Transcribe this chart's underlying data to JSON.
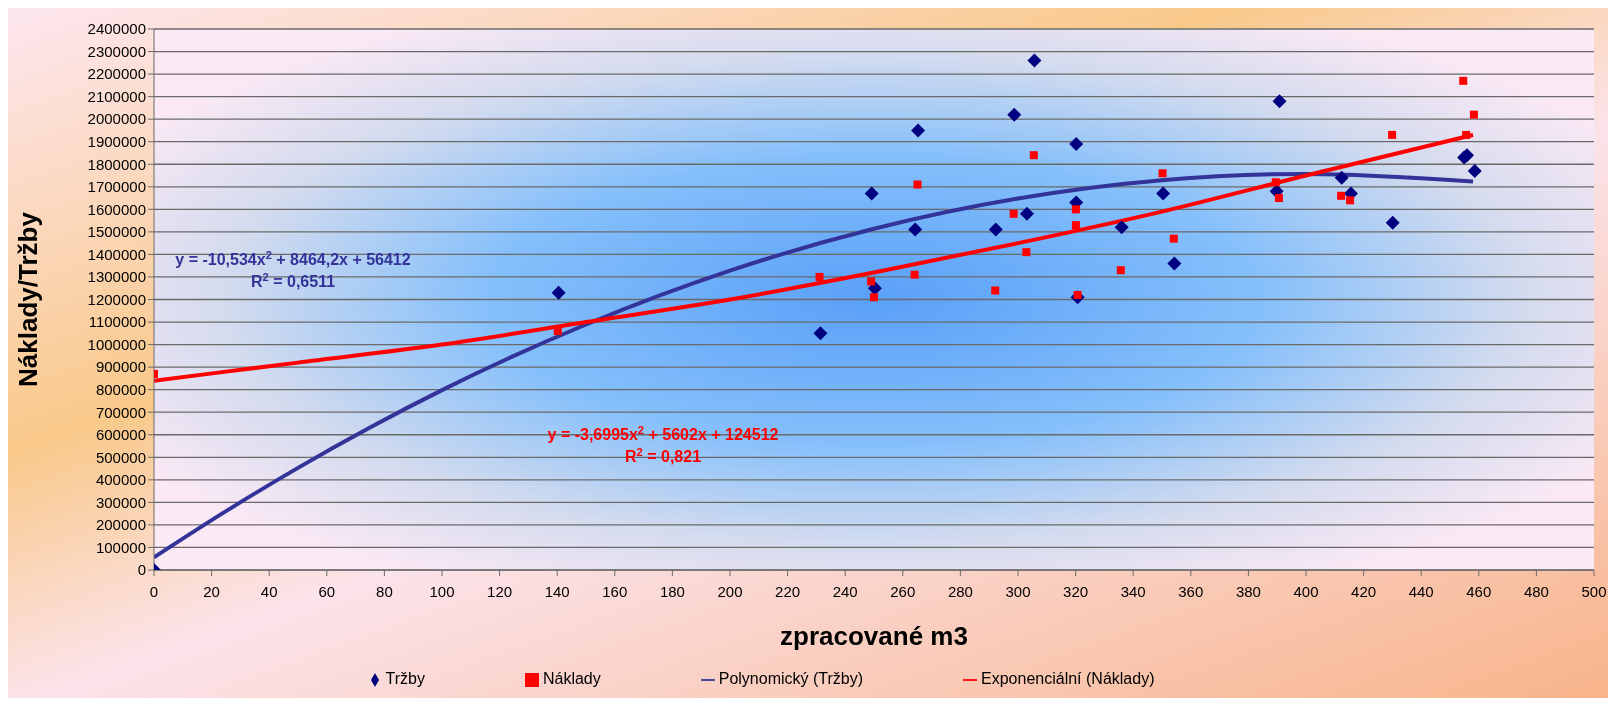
{
  "chart_data": {
    "type": "scatter",
    "xlabel": "zpracované m3",
    "ylabel": "Náklady/Tržby",
    "xlim": [
      0,
      500
    ],
    "xticks": [
      0,
      20,
      40,
      60,
      80,
      100,
      120,
      140,
      160,
      180,
      200,
      220,
      240,
      260,
      280,
      300,
      320,
      340,
      360,
      380,
      400,
      420,
      440,
      460,
      480,
      500
    ],
    "ylim": [
      0,
      2400000
    ],
    "yticks": [
      0,
      100000,
      200000,
      300000,
      400000,
      500000,
      600000,
      700000,
      800000,
      900000,
      1000000,
      1100000,
      1200000,
      1300000,
      1400000,
      1500000,
      1600000,
      1700000,
      1800000,
      1900000,
      2000000,
      2100000,
      2200000,
      2300000,
      2400000
    ],
    "grid": "y",
    "legend": "bottom",
    "series": [
      {
        "name": "Tržby",
        "marker": "diamond",
        "color": "#000080",
        "x": [
          0,
          140.5,
          231.4,
          249.2,
          250.3,
          264.3,
          265.3,
          292.3,
          298.7,
          303.1,
          305.7,
          320.2,
          320.2,
          320.7,
          336,
          350.4,
          354.3,
          389.8,
          390.8,
          412.4,
          415.6,
          430.1,
          454.9,
          455.9,
          458.6
        ],
        "values": [
          0,
          1230000,
          1050000,
          1670000,
          1250000,
          1510000,
          1950000,
          1510000,
          2020000,
          1580000,
          2260000,
          1890000,
          1630000,
          1210000,
          1520000,
          1670000,
          1360000,
          1680000,
          2080000,
          1740000,
          1670000,
          1540000,
          1830000,
          1840000,
          1770000
        ]
      },
      {
        "name": "Náklady",
        "marker": "square",
        "color": "#ff0000",
        "x": [
          0,
          140.2,
          231.1,
          249,
          250,
          264.1,
          265.1,
          292.1,
          298.5,
          302.9,
          305.5,
          320.1,
          320.1,
          320.7,
          335.7,
          350.2,
          354.1,
          389.5,
          390.6,
          412.2,
          415.3,
          429.9,
          454.6,
          455.6,
          458.3
        ],
        "values": [
          870000,
          1060000,
          1300000,
          1280000,
          1210000,
          1310000,
          1710000,
          1240000,
          1580000,
          1410000,
          1840000,
          1600000,
          1530000,
          1220000,
          1330000,
          1760000,
          1470000,
          1720000,
          1650000,
          1660000,
          1640000,
          1930000,
          2170000,
          1930000,
          2020000
        ]
      },
      {
        "name": "Polynomický (Tržby)",
        "type": "line",
        "marker": "none",
        "color": "#333399",
        "x": [
          0,
          25,
          50,
          75,
          100,
          150,
          200,
          250,
          300,
          350,
          400,
          458
        ],
        "values": [
          56000,
          261000,
          453000,
          632000,
          798000,
          1089000,
          1328000,
          1514000,
          1648000,
          1729000,
          1757000,
          1723000
        ]
      },
      {
        "name": "Exponenciální (Náklady)",
        "type": "line",
        "marker": "none",
        "color": "#ff0000",
        "x": [
          0,
          50,
          100,
          150,
          200,
          250,
          300,
          350,
          400,
          458
        ],
        "values": [
          840000,
          920000,
          1000000,
          1100000,
          1200000,
          1320000,
          1450000,
          1590000,
          1750000,
          1930000
        ]
      }
    ],
    "annotations": [
      "y = -10,534x$^{2}$ + 8464,2x + 56412",
      "R$^{2}$ = 0,6511",
      "y = -3,6995x$^{2}$ + 5602x + 124512",
      "R$^{2}$ = 0,821"
    ]
  }
}
